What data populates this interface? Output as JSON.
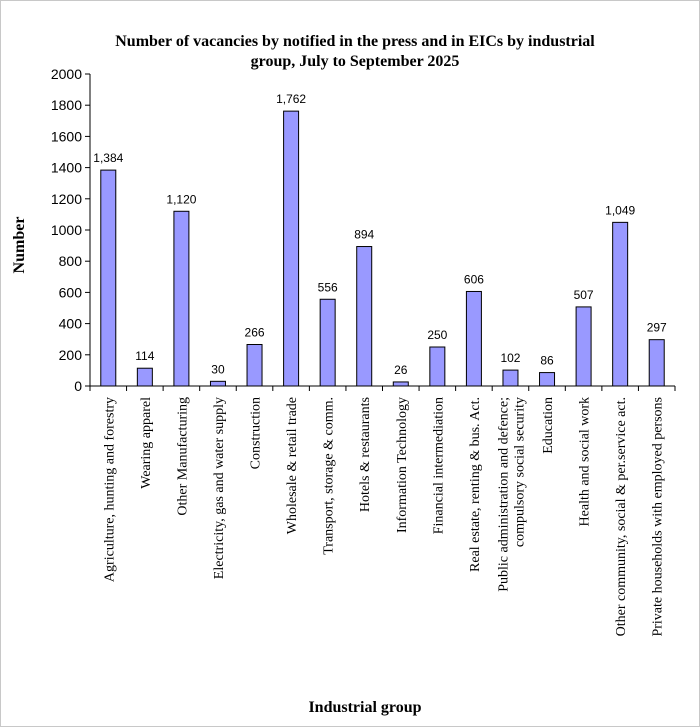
{
  "chart_data": {
    "type": "bar",
    "title": [
      "Number of vacancies by notified in the press and in EICs by industrial",
      "group, July to September 2025"
    ],
    "xlabel": "Industrial group",
    "ylabel": "Number",
    "ylim": [
      0,
      2000
    ],
    "yticks": [
      0,
      200,
      400,
      600,
      800,
      1000,
      1200,
      1400,
      1600,
      1800,
      2000
    ],
    "grid": false,
    "bar_color": "#9999ff",
    "categories": [
      [
        "Agriculture, hunting and forestry"
      ],
      [
        "Wearing apparel"
      ],
      [
        "Other Manufacturing"
      ],
      [
        "Electricity, gas and water supply"
      ],
      [
        "Construction"
      ],
      [
        "Wholesale & retail trade"
      ],
      [
        "Transport, storage & comm."
      ],
      [
        "Hotels & restaurants"
      ],
      [
        "Information Technology"
      ],
      [
        "Financial intermediation"
      ],
      [
        "Real estate, renting & bus. Act."
      ],
      [
        "Public administration and defence;",
        "compulsory social security"
      ],
      [
        "Education"
      ],
      [
        "Health and social work"
      ],
      [
        "Other community, social & per.service act."
      ],
      [
        "Private households with employed persons"
      ]
    ],
    "values": [
      1384,
      114,
      1120,
      30,
      266,
      1762,
      556,
      894,
      26,
      250,
      606,
      102,
      86,
      507,
      1049,
      297
    ],
    "data_labels": [
      "1,384",
      "114",
      "1,120",
      "30",
      "266",
      "1,762",
      "556",
      "894",
      "26",
      "250",
      "606",
      "102",
      "86",
      "507",
      "1,049",
      "297"
    ]
  }
}
